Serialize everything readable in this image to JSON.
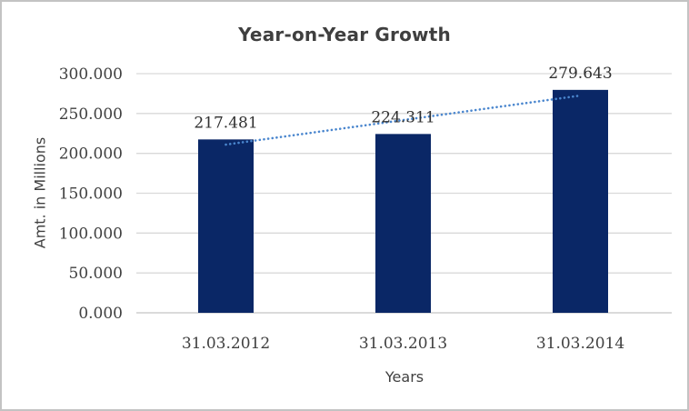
{
  "chart_data": {
    "type": "bar",
    "title": "Year-on-Year Growth",
    "xlabel": "Years",
    "ylabel": "Amt. in Millions",
    "categories": [
      "31.03.2012",
      "31.03.2013",
      "31.03.2014"
    ],
    "values": [
      217.481,
      224.311,
      279.643
    ],
    "data_labels": [
      "217.481",
      "224.311",
      "279.643"
    ],
    "y_ticks": [
      {
        "value": 0,
        "label": "0.000"
      },
      {
        "value": 50,
        "label": "50.000"
      },
      {
        "value": 100,
        "label": "100.000"
      },
      {
        "value": 150,
        "label": "150.000"
      },
      {
        "value": 200,
        "label": "200.000"
      },
      {
        "value": 250,
        "label": "250.000"
      },
      {
        "value": 300,
        "label": "300.000"
      }
    ],
    "ylim": [
      0,
      300
    ],
    "grid": true,
    "legend": false,
    "trendline": {
      "type": "linear",
      "style": "dotted",
      "start_value": 211,
      "end_value": 272.5
    },
    "colors": {
      "bar": "#0a2766",
      "trendline": "#4a86ce",
      "gridline": "#d9d9d9",
      "axis_line": "#c3c3c3",
      "text": "#404040",
      "data_label_text": "#303030",
      "title_text": "#3f3f3f"
    }
  }
}
